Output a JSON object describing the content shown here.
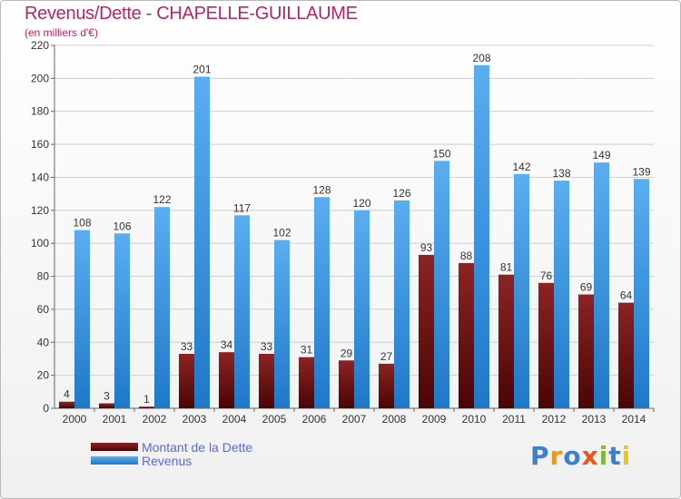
{
  "title": "Revenus/Dette - CHAPELLE-GUILLAUME",
  "subtitle": "(en milliers d'€)",
  "legend": {
    "debt_label": "Montant de la Dette",
    "revenue_label": "Revenus"
  },
  "logo_text": "Proxiti",
  "colors": {
    "debt": "#8b1c1c",
    "revenue": "#3f9be0",
    "title": "#b22765"
  },
  "chart_data": {
    "type": "bar",
    "title": "Revenus/Dette - CHAPELLE-GUILLAUME",
    "subtitle": "(en milliers d'€)",
    "xlabel": "",
    "ylabel": "",
    "ylim": [
      0,
      220
    ],
    "yticks": [
      0,
      20,
      40,
      60,
      80,
      100,
      120,
      140,
      160,
      180,
      200,
      220
    ],
    "categories": [
      "2000",
      "2001",
      "2002",
      "2003",
      "2004",
      "2005",
      "2006",
      "2007",
      "2008",
      "2009",
      "2010",
      "2011",
      "2012",
      "2013",
      "2014"
    ],
    "series": [
      {
        "name": "Montant de la Dette",
        "values": [
          4,
          3,
          1,
          33,
          34,
          33,
          31,
          29,
          27,
          93,
          88,
          81,
          76,
          69,
          64
        ]
      },
      {
        "name": "Revenus",
        "values": [
          108,
          106,
          122,
          201,
          117,
          102,
          128,
          120,
          126,
          150,
          208,
          142,
          138,
          149,
          139
        ]
      }
    ],
    "grid": true,
    "legend_position": "bottom-left"
  }
}
